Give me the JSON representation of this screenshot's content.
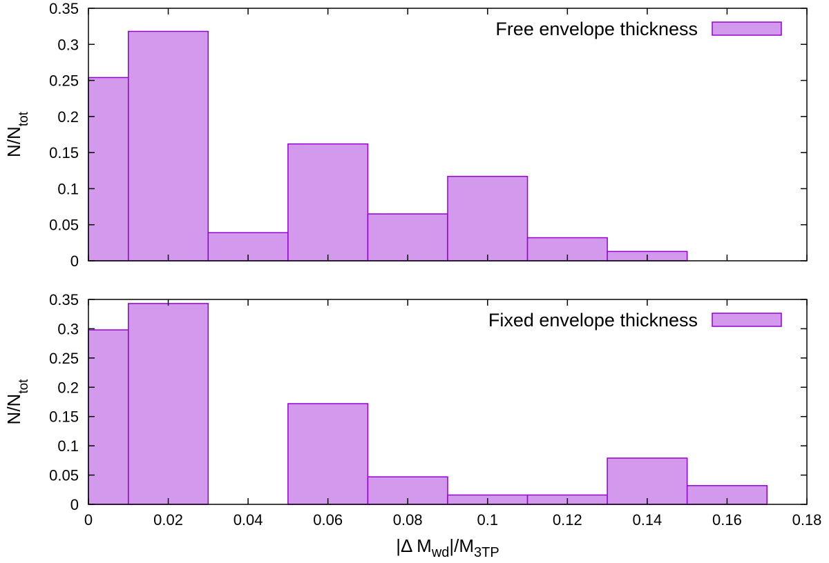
{
  "chart_data": [
    {
      "type": "bar",
      "panel": "top",
      "legend": "Free envelope thickness",
      "legend_position": "top-right",
      "ylabel": {
        "main": "N/N",
        "sub": "tot"
      },
      "xlim": [
        0,
        0.18
      ],
      "ylim": [
        0,
        0.35
      ],
      "xticks": [
        0,
        0.02,
        0.04,
        0.06,
        0.08,
        0.1,
        0.12,
        0.14,
        0.16,
        0.18
      ],
      "yticks": [
        0,
        0.05,
        0.1,
        0.15,
        0.2,
        0.25,
        0.3,
        0.35
      ],
      "ytick_labels": [
        "0",
        "0.05",
        "0.1",
        "0.15",
        "0.2",
        "0.25",
        "0.3",
        "0.35"
      ],
      "show_xtick_labels": false,
      "bins": [
        {
          "x0": 0.0,
          "x1": 0.01,
          "value": 0.254
        },
        {
          "x0": 0.01,
          "x1": 0.03,
          "value": 0.318
        },
        {
          "x0": 0.03,
          "x1": 0.05,
          "value": 0.039
        },
        {
          "x0": 0.05,
          "x1": 0.07,
          "value": 0.162
        },
        {
          "x0": 0.07,
          "x1": 0.09,
          "value": 0.065
        },
        {
          "x0": 0.09,
          "x1": 0.11,
          "value": 0.117
        },
        {
          "x0": 0.11,
          "x1": 0.13,
          "value": 0.032
        },
        {
          "x0": 0.13,
          "x1": 0.15,
          "value": 0.013
        }
      ]
    },
    {
      "type": "bar",
      "panel": "bottom",
      "legend": "Fixed envelope thickness",
      "legend_position": "top-right",
      "ylabel": {
        "main": "N/N",
        "sub": "tot"
      },
      "xlabel": {
        "pre": "|Δ M",
        "sub1": "wd",
        "mid": "|/M",
        "sub2": "3TP"
      },
      "xlim": [
        0,
        0.18
      ],
      "ylim": [
        0,
        0.35
      ],
      "xticks": [
        0,
        0.02,
        0.04,
        0.06,
        0.08,
        0.1,
        0.12,
        0.14,
        0.16,
        0.18
      ],
      "xtick_labels": [
        "0",
        "0.02",
        "0.04",
        "0.06",
        "0.08",
        "0.1",
        "0.12",
        "0.14",
        "0.16",
        "0.18"
      ],
      "yticks": [
        0,
        0.05,
        0.1,
        0.15,
        0.2,
        0.25,
        0.3,
        0.35
      ],
      "ytick_labels": [
        "0",
        "0.05",
        "0.1",
        "0.15",
        "0.2",
        "0.25",
        "0.3",
        "0.35"
      ],
      "show_xtick_labels": true,
      "bins": [
        {
          "x0": 0.0,
          "x1": 0.01,
          "value": 0.298
        },
        {
          "x0": 0.01,
          "x1": 0.03,
          "value": 0.343
        },
        {
          "x0": 0.03,
          "x1": 0.05,
          "value": 0.0
        },
        {
          "x0": 0.05,
          "x1": 0.07,
          "value": 0.172
        },
        {
          "x0": 0.07,
          "x1": 0.09,
          "value": 0.047
        },
        {
          "x0": 0.09,
          "x1": 0.11,
          "value": 0.016
        },
        {
          "x0": 0.11,
          "x1": 0.13,
          "value": 0.016
        },
        {
          "x0": 0.13,
          "x1": 0.15,
          "value": 0.079
        },
        {
          "x0": 0.15,
          "x1": 0.17,
          "value": 0.032
        }
      ]
    }
  ],
  "colors": {
    "bar_fill": "#d399ec",
    "bar_stroke": "#9400d3",
    "axis": "#000000"
  }
}
